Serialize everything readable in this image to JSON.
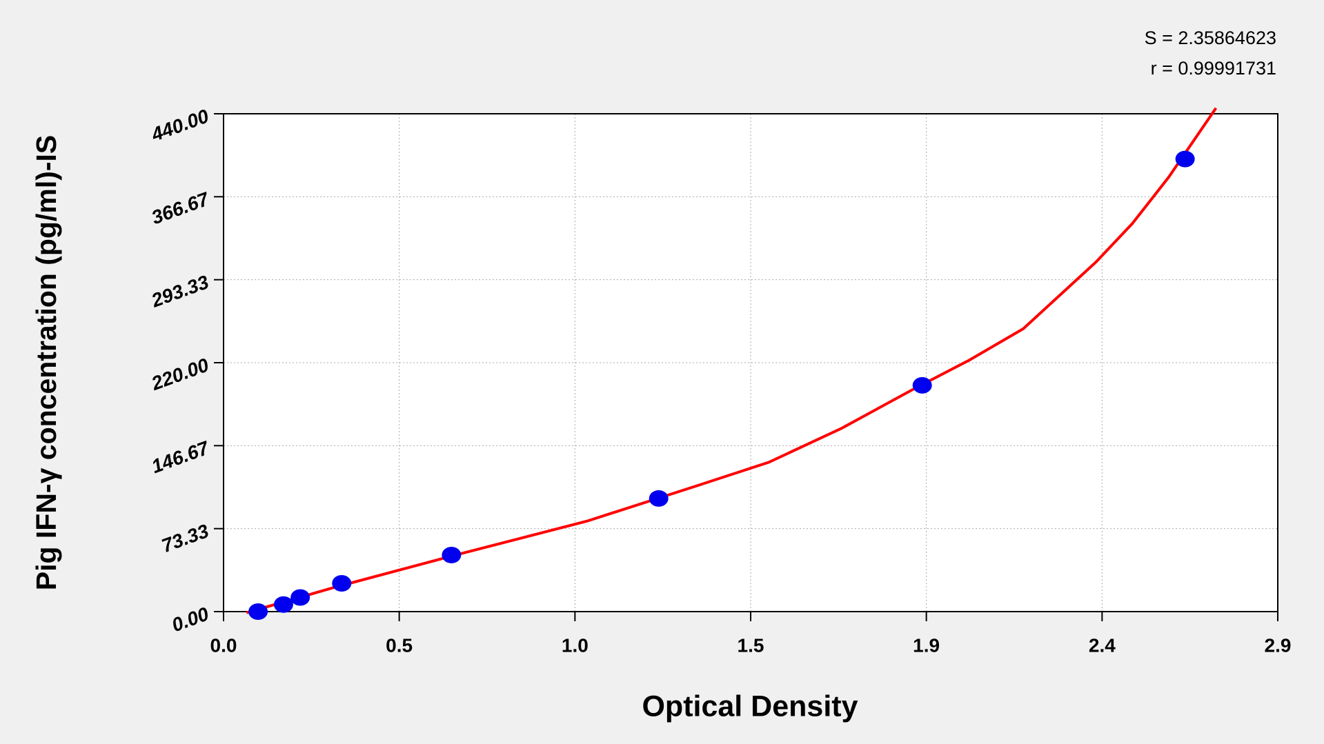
{
  "chart_data": {
    "type": "scatter",
    "annotations": [
      "S = 2.35864623",
      "r = 0.99991731"
    ],
    "x_label": "Optical Density",
    "y_label": "Pig IFN-γ concentration (pg/ml)-IS",
    "xlim": [
      0,
      2.9
    ],
    "xticks": [
      {
        "value": 0,
        "label": "0.0"
      },
      {
        "value": 0.4833,
        "label": "0.5"
      },
      {
        "value": 0.9667,
        "label": "1.0"
      },
      {
        "value": 1.45,
        "label": "1.5"
      },
      {
        "value": 1.9333,
        "label": "1.9"
      },
      {
        "value": 2.4167,
        "label": "2.4"
      },
      {
        "value": 2.9,
        "label": "2.9"
      }
    ],
    "ylim": [
      0,
      440
    ],
    "yticks": [
      {
        "value": 0,
        "label": "0.00"
      },
      {
        "value": 73.33,
        "label": "73.33"
      },
      {
        "value": 146.67,
        "label": "146.67"
      },
      {
        "value": 220,
        "label": "220.00"
      },
      {
        "value": 293.33,
        "label": "293.33"
      },
      {
        "value": 366.67,
        "label": "366.67"
      },
      {
        "value": 440,
        "label": "440.00"
      }
    ],
    "grid": true,
    "series": [
      {
        "kind": "points",
        "color": "#0000ee",
        "x": [
          0.095,
          0.165,
          0.211,
          0.325,
          0.627,
          1.197,
          1.922,
          2.645
        ],
        "values": [
          0,
          6.25,
          12.5,
          25,
          50,
          100,
          200,
          400
        ]
      },
      {
        "kind": "fit",
        "color": "#ff0000",
        "x": [
          0.063,
          0.3,
          0.65,
          1.0,
          1.3,
          1.5,
          1.7,
          1.9,
          2.05,
          2.2,
          2.4,
          2.5,
          2.6,
          2.73
        ],
        "values": [
          -1,
          21,
          51,
          80,
          111,
          132,
          162,
          197,
          222,
          250,
          309,
          343,
          384,
          445
        ]
      }
    ]
  }
}
